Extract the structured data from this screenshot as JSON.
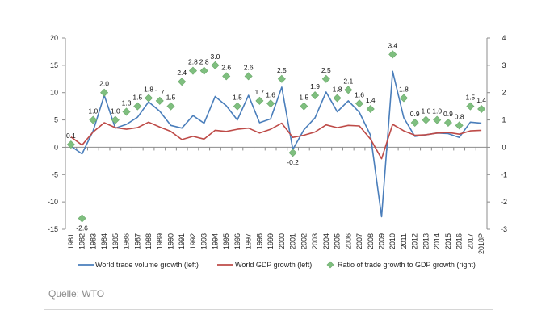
{
  "source_text": "Quelle: WTO",
  "chart_data": {
    "type": "line",
    "x": [
      "1981",
      "1982",
      "1983",
      "1984",
      "1985",
      "1986",
      "1987",
      "1988",
      "1989",
      "1990",
      "1991",
      "1992",
      "1993",
      "1994",
      "1995",
      "1996",
      "1997",
      "1998",
      "1999",
      "2000",
      "2001",
      "2002",
      "2003",
      "2004",
      "2005",
      "2006",
      "2007",
      "2008",
      "2009",
      "2010",
      "2011",
      "2012",
      "2013",
      "2014",
      "2015",
      "2016",
      "2017",
      "2018P"
    ],
    "left_axis": {
      "ylim": [
        -15,
        20
      ],
      "ticks": [
        -15,
        -10,
        -5,
        0,
        5,
        10,
        15,
        20
      ]
    },
    "right_axis": {
      "ylim": [
        -3,
        4
      ],
      "ticks": [
        -3,
        -2,
        -1,
        0,
        1,
        2,
        3,
        4
      ]
    },
    "series": [
      {
        "name": "World trade volume growth (left)",
        "axis": "left",
        "kind": "line",
        "color": "#4a7ebb",
        "values": [
          0.2,
          -1.2,
          3.0,
          9.5,
          3.5,
          4.2,
          5.5,
          8.3,
          6.6,
          4.0,
          3.5,
          5.8,
          4.4,
          9.3,
          7.6,
          5.0,
          9.5,
          4.5,
          5.2,
          11.0,
          -0.4,
          3.2,
          5.4,
          10.1,
          6.5,
          8.5,
          6.4,
          2.2,
          -12.7,
          13.9,
          5.4,
          2.0,
          2.3,
          2.6,
          2.5,
          1.8,
          4.6,
          4.4
        ]
      },
      {
        "name": "World GDP growth (left)",
        "axis": "left",
        "kind": "line",
        "color": "#be4b48",
        "values": [
          1.9,
          0.4,
          2.8,
          4.5,
          3.6,
          3.3,
          3.6,
          4.6,
          3.7,
          2.9,
          1.4,
          2.0,
          1.5,
          3.1,
          2.9,
          3.3,
          3.5,
          2.6,
          3.3,
          4.4,
          1.8,
          2.2,
          2.8,
          4.1,
          3.6,
          4.0,
          3.9,
          1.5,
          -2.1,
          4.2,
          3.0,
          2.2,
          2.3,
          2.6,
          2.7,
          2.4,
          3.0,
          3.1
        ]
      },
      {
        "name": "Ratio of trade growth to GDP growth (right)",
        "axis": "right",
        "kind": "marker",
        "color": "#7fbf7f",
        "values": [
          0.1,
          -2.6,
          1.0,
          2.0,
          1.0,
          1.3,
          1.5,
          1.8,
          1.7,
          1.5,
          2.4,
          2.8,
          2.8,
          3.0,
          2.6,
          1.5,
          2.6,
          1.7,
          1.6,
          2.5,
          -0.2,
          1.5,
          1.9,
          2.5,
          1.8,
          2.1,
          1.6,
          1.4,
          null,
          3.4,
          1.8,
          0.9,
          1.0,
          1.0,
          0.9,
          0.8,
          1.5,
          1.4
        ],
        "labels": [
          "0.1",
          "-2.6",
          "1.0",
          "2.0",
          "1.0",
          "1.3",
          "1.5",
          "1.8",
          "1.7",
          "1.5",
          "2.4",
          "2.8",
          "2.8",
          "3.0",
          "2.6",
          "1.5",
          "2.6",
          "1.7",
          "1.6",
          "2.5",
          "-0.2",
          "1.5",
          "1.9",
          "2.5",
          "1.8",
          "2.1",
          "1.6",
          "1.4",
          "",
          "3.4",
          "1.8",
          "0.9",
          "1.0",
          "1.0",
          "0.9",
          "0.8",
          "1.5",
          "1.4"
        ]
      }
    ],
    "grid": false,
    "legend_position": "bottom"
  }
}
